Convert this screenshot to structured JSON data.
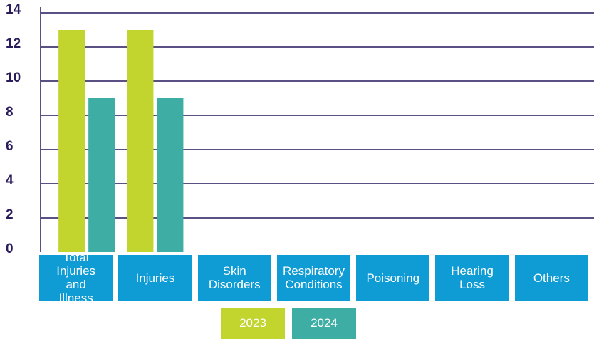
{
  "chart_data": {
    "type": "bar",
    "categories": [
      "Total Injuries and Illness",
      "Injuries",
      "Skin Disorders",
      "Respiratory Conditions",
      "Poisoning",
      "Hearing Loss",
      "Others"
    ],
    "series": [
      {
        "name": "2023",
        "color": "#c2d52e",
        "values": [
          13,
          13,
          0,
          0,
          0,
          0,
          0
        ]
      },
      {
        "name": "2024",
        "color": "#3eaea4",
        "values": [
          9,
          9,
          0,
          0,
          0,
          0,
          0
        ]
      }
    ],
    "ylim": [
      0,
      14
    ],
    "yticks": [
      0,
      2,
      4,
      6,
      8,
      10,
      12,
      14
    ],
    "grid": true,
    "category_color": "#0f9bd4"
  }
}
